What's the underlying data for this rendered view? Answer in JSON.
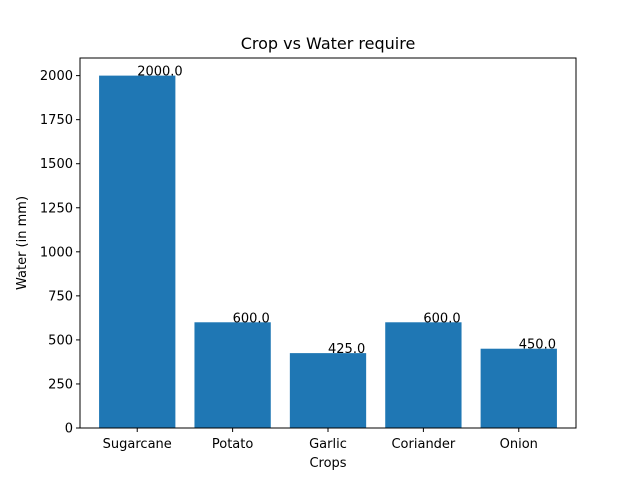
{
  "chart_data": {
    "type": "bar",
    "title": "Crop vs Water require",
    "xlabel": "Crops",
    "ylabel": "Water (in mm)",
    "categories": [
      "Sugarcane",
      "Potato",
      "Garlic",
      "Coriander",
      "Onion"
    ],
    "values": [
      2000,
      600,
      425,
      600,
      450
    ],
    "value_labels": [
      "2000.0",
      "600.0",
      "425.0",
      "600.0",
      "450.0"
    ],
    "ylim": [
      0,
      2100
    ],
    "yticks": [
      0,
      250,
      500,
      750,
      1000,
      1250,
      1500,
      1750,
      2000
    ],
    "bar_color": "#1f77b4",
    "grid": false,
    "legend": "none"
  }
}
